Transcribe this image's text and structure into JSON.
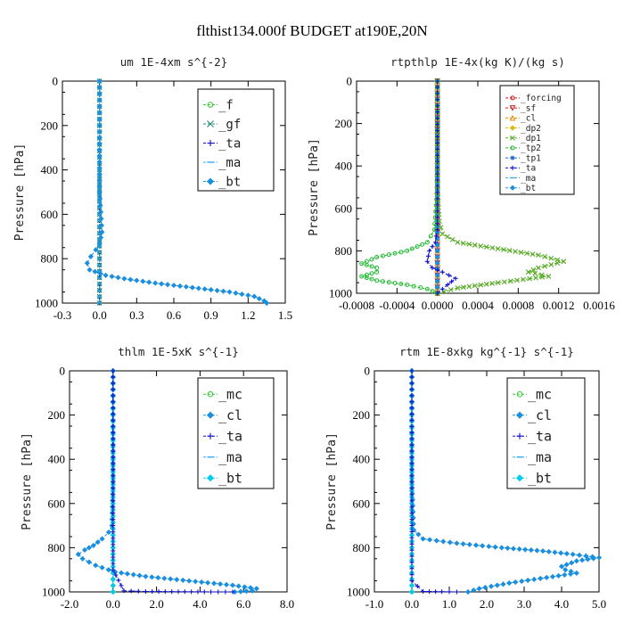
{
  "figure": {
    "title": "flthist134.000f  BUDGET at190E,20N"
  },
  "chart_data": [
    {
      "id": "um",
      "type": "line",
      "title": "um   1E-4xm s^{-2}",
      "ylabel": "Pressure [hPa]",
      "xlim": [
        -0.3,
        1.5
      ],
      "ylim": [
        1000,
        0
      ],
      "xticks": [
        "-0.3",
        "0.0",
        "0.3",
        "0.6",
        "0.9",
        "1.2",
        "1.5"
      ],
      "yticks": [
        "0",
        "200",
        "400",
        "600",
        "800",
        "1000"
      ],
      "legend_position": "top-right",
      "series": [
        {
          "name": "_f",
          "color": "#33cc33",
          "marker": "circle",
          "x": [
            0,
            0,
            0,
            0,
            0,
            0
          ],
          "y": [
            0,
            200,
            400,
            600,
            800,
            1000
          ]
        },
        {
          "name": "_gf",
          "color": "#228877",
          "marker": "x",
          "x": [
            0,
            0,
            0,
            0,
            0,
            0
          ],
          "y": [
            0,
            200,
            400,
            600,
            800,
            1000
          ]
        },
        {
          "name": "_ta",
          "color": "#1111cc",
          "marker": "plus",
          "x": [
            0,
            0,
            0,
            0,
            0,
            0
          ],
          "y": [
            0,
            200,
            400,
            600,
            800,
            1000
          ]
        },
        {
          "name": "_ma",
          "color": "#33aaee",
          "marker": "dash",
          "x": [
            0,
            0,
            0,
            0,
            0,
            0
          ],
          "y": [
            0,
            200,
            400,
            600,
            800,
            1000
          ]
        },
        {
          "name": "_bt",
          "color": "#1a8fe0",
          "marker": "diamond",
          "x": [
            0,
            0,
            0,
            0.02,
            0.0,
            -0.03,
            -0.07,
            -0.1,
            -0.08,
            0.05,
            0.2,
            0.45,
            0.75,
            1.05,
            1.25,
            1.33,
            1.35
          ],
          "y": [
            0,
            200,
            500,
            680,
            730,
            760,
            790,
            820,
            850,
            875,
            890,
            910,
            930,
            950,
            970,
            990,
            1000
          ]
        }
      ]
    },
    {
      "id": "rtpthlp",
      "type": "line",
      "title": "rtpthlp   1E-4x(kg K)/(kg s)",
      "ylabel": "Pressure [hPa]",
      "xlim": [
        -0.0008,
        0.0016
      ],
      "ylim": [
        1000,
        0
      ],
      "xticks": [
        "-0.0008",
        "-0.0004",
        "0.0000",
        "0.0004",
        "0.0008",
        "0.0012",
        "0.0016"
      ],
      "yticks": [
        "0",
        "200",
        "400",
        "600",
        "800",
        "1000"
      ],
      "legend_position": "top-right",
      "series": [
        {
          "name": "_forcing",
          "color": "#dd1111",
          "marker": "circle",
          "x": [
            0,
            0,
            0,
            0,
            0,
            0
          ],
          "y": [
            0,
            200,
            400,
            600,
            800,
            1000
          ]
        },
        {
          "name": "_sf",
          "color": "#cc2222",
          "marker": "triangle-down",
          "x": [
            0,
            0,
            0,
            0,
            0,
            0
          ],
          "y": [
            0,
            200,
            400,
            600,
            800,
            1000
          ]
        },
        {
          "name": "_cl",
          "color": "#ee8800",
          "marker": "triangle-up",
          "x": [
            0,
            0,
            0,
            0,
            0,
            0
          ],
          "y": [
            0,
            200,
            400,
            600,
            800,
            1000
          ]
        },
        {
          "name": "_dp2",
          "color": "#ddbb00",
          "marker": "diamond",
          "x": [
            0,
            0,
            0,
            0,
            0,
            0
          ],
          "y": [
            0,
            200,
            400,
            600,
            800,
            1000
          ]
        },
        {
          "name": "_dp1",
          "color": "#55aa22",
          "marker": "x",
          "x": [
            0,
            0,
            2e-05,
            5e-05,
            0.0002,
            0.0006,
            0.001,
            0.00125,
            0.001,
            0.0009,
            0.0011,
            0.0006,
            0.0002,
            0
          ],
          "y": [
            0,
            500,
            660,
            720,
            760,
            790,
            820,
            850,
            880,
            900,
            920,
            950,
            975,
            1000
          ]
        },
        {
          "name": "_tp2",
          "color": "#22bb33",
          "marker": "circle",
          "x": [
            0,
            0,
            -3e-05,
            -0.0001,
            -0.0003,
            -0.0006,
            -0.00075,
            -0.0006,
            -0.0006,
            -0.00075,
            -0.0006,
            -0.0003,
            -0.0001,
            0
          ],
          "y": [
            0,
            500,
            700,
            760,
            800,
            830,
            860,
            880,
            900,
            920,
            940,
            960,
            980,
            1000
          ]
        },
        {
          "name": "_tp1",
          "color": "#1166dd",
          "marker": "star",
          "x": [
            0,
            0,
            0,
            0,
            0,
            0
          ],
          "y": [
            0,
            200,
            400,
            600,
            800,
            1000
          ]
        },
        {
          "name": "_ta",
          "color": "#1111cc",
          "marker": "plus",
          "x": [
            0,
            0,
            -2e-05,
            -8e-05,
            -0.0001,
            -5e-05,
            5e-05,
            0.00018,
            0.0001,
            0
          ],
          "y": [
            0,
            700,
            760,
            800,
            850,
            880,
            900,
            930,
            960,
            1000
          ]
        },
        {
          "name": "_ma",
          "color": "#33aaee",
          "marker": "dash",
          "x": [
            0,
            0,
            0,
            0,
            0,
            0
          ],
          "y": [
            0,
            200,
            400,
            600,
            800,
            1000
          ]
        },
        {
          "name": "_bt",
          "color": "#1a8fe0",
          "marker": "diamond",
          "x": [
            0,
            0,
            0,
            0,
            0,
            0
          ],
          "y": [
            0,
            200,
            400,
            600,
            800,
            1000
          ]
        }
      ]
    },
    {
      "id": "thlm",
      "type": "line",
      "title": "thlm   1E-5xK s^{-1}",
      "ylabel": "Pressure [hPa]",
      "xlim": [
        -2.0,
        8.0
      ],
      "ylim": [
        1000,
        0
      ],
      "xticks": [
        "-2.0",
        "0.0",
        "2.0",
        "4.0",
        "6.0",
        "8.0"
      ],
      "yticks": [
        "0",
        "200",
        "400",
        "600",
        "800",
        "1000"
      ],
      "legend_position": "top-right",
      "series": [
        {
          "name": "_mc",
          "color": "#33cc33",
          "marker": "circle",
          "x": [
            0,
            0,
            0,
            0,
            0,
            0
          ],
          "y": [
            0,
            200,
            400,
            600,
            800,
            1000
          ]
        },
        {
          "name": "_cl",
          "color": "#1a8fe0",
          "marker": "diamond",
          "x": [
            0,
            0,
            -0.05,
            -0.2,
            -0.5,
            -0.9,
            -1.3,
            -1.6,
            -1.4,
            -0.8,
            0.1,
            1.5,
            3.5,
            5.5,
            6.6,
            6.4,
            5.6
          ],
          "y": [
            0,
            500,
            700,
            730,
            760,
            790,
            810,
            830,
            850,
            880,
            910,
            930,
            950,
            970,
            985,
            995,
            1000
          ]
        },
        {
          "name": "_ta",
          "color": "#1111cc",
          "marker": "plus",
          "x": [
            0,
            0,
            0,
            0.5,
            1.5,
            3.0,
            4.5,
            5.5
          ],
          "y": [
            0,
            700,
            900,
            995,
            998,
            999,
            1000,
            1000
          ]
        },
        {
          "name": "_ma",
          "color": "#33aaee",
          "marker": "dash",
          "x": [
            0,
            0,
            0,
            0,
            0,
            0
          ],
          "y": [
            0,
            200,
            400,
            600,
            800,
            1000
          ]
        },
        {
          "name": "_bt",
          "color": "#00ccee",
          "marker": "diamond",
          "x": [
            0,
            0,
            0,
            0,
            0,
            0
          ],
          "y": [
            0,
            200,
            400,
            600,
            800,
            1000
          ]
        }
      ]
    },
    {
      "id": "rtm",
      "type": "line",
      "title": "rtm   1E-8xkg kg^{-1} s^{-1}",
      "ylabel": "Pressure [hPa]",
      "xlim": [
        -1.0,
        5.0
      ],
      "ylim": [
        1000,
        0
      ],
      "xticks": [
        "-1.0",
        "0.0",
        "1.0",
        "2.0",
        "3.0",
        "4.0",
        "5.0"
      ],
      "yticks": [
        "0",
        "200",
        "400",
        "600",
        "800",
        "1000"
      ],
      "legend_position": "top-right",
      "series": [
        {
          "name": "_mc",
          "color": "#33cc33",
          "marker": "circle",
          "x": [
            0,
            0,
            0,
            0,
            0,
            0
          ],
          "y": [
            0,
            200,
            400,
            600,
            800,
            1000
          ]
        },
        {
          "name": "_cl",
          "color": "#1a8fe0",
          "marker": "diamond",
          "x": [
            0,
            0,
            0.05,
            0.3,
            1.2,
            2.4,
            3.5,
            4.3,
            5.0,
            4.4,
            4.0,
            4.1,
            4.4,
            3.6,
            2.6,
            1.8,
            1.5
          ],
          "y": [
            0,
            500,
            720,
            760,
            780,
            800,
            815,
            830,
            845,
            860,
            885,
            900,
            915,
            935,
            960,
            985,
            1000
          ]
        },
        {
          "name": "_ta",
          "color": "#1111cc",
          "marker": "plus",
          "x": [
            0,
            0,
            0,
            0.3,
            0.8,
            1.2
          ],
          "y": [
            0,
            700,
            950,
            998,
            999,
            1000
          ]
        },
        {
          "name": "_ma",
          "color": "#33aaee",
          "marker": "dash",
          "x": [
            0,
            0,
            0,
            0,
            0,
            0
          ],
          "y": [
            0,
            200,
            400,
            600,
            800,
            1000
          ]
        },
        {
          "name": "_bt",
          "color": "#00ccee",
          "marker": "diamond",
          "x": [
            0,
            0,
            0,
            0,
            0,
            0
          ],
          "y": [
            0,
            200,
            400,
            600,
            800,
            1000
          ]
        }
      ]
    }
  ]
}
